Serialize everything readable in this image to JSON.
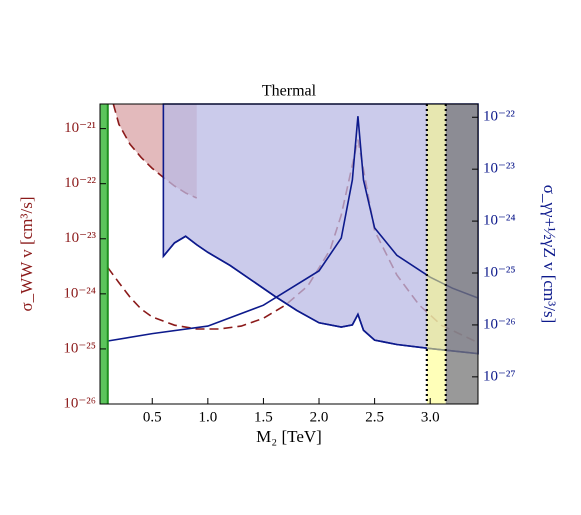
{
  "chart_data": {
    "type": "line",
    "title": "Thermal",
    "xlabel": "M₂ [TeV]",
    "ylabel": "σ_WW v [cm³/s]",
    "y2label": "σ_γγ+½γZ v [cm³/s]",
    "ylabel_color": "#8b1a1a",
    "y2label_color": "#0d1a8c",
    "log_y": true,
    "xlim": [
      0.03,
      3.43
    ],
    "ylim": [
      1e-26,
      2.8e-21
    ],
    "y2lim": [
      3e-28,
      1.8e-22
    ],
    "xticks": [
      0.5,
      {
        "value": 1,
        "label": "1.0"
      },
      1.5,
      {
        "value": 2,
        "label": "2.0"
      },
      2.5,
      {
        "value": 3,
        "label": "3.0"
      }
    ],
    "yticks": [
      {
        "value": 1e-26,
        "label": "10⁻²⁶"
      },
      {
        "value": 1e-25,
        "label": "10⁻²⁵"
      },
      {
        "value": 1e-24,
        "label": "10⁻²⁴"
      },
      {
        "value": 1e-23,
        "label": "10⁻²³"
      },
      {
        "value": 1e-22,
        "label": "10⁻²²"
      },
      {
        "value": 1e-21,
        "label": "10⁻²¹"
      }
    ],
    "y2ticks": [
      {
        "value": 1e-27,
        "label": "10⁻²⁷"
      },
      {
        "value": 1e-26,
        "label": "10⁻²⁶"
      },
      {
        "value": 1e-25,
        "label": "10⁻²⁵"
      },
      {
        "value": 1e-24,
        "label": "10⁻²⁴"
      },
      {
        "value": 1e-23,
        "label": "10⁻²³"
      },
      {
        "value": 1e-22,
        "label": "10⁻²²"
      }
    ],
    "series": [
      {
        "color": "#8b1a1a",
        "style": "dashed",
        "axis": "y",
        "fill": "#d9a3a6",
        "x": [
          0.15,
          0.2,
          0.3,
          0.4,
          0.5,
          0.6,
          0.7,
          0.8,
          0.9
        ],
        "values": [
          2.8e-21,
          1.2e-21,
          5.2e-22,
          3e-22,
          1.9e-22,
          1.3e-22,
          9.1e-23,
          6.8e-23,
          5.5e-23
        ]
      },
      {
        "color": "#8b1a1a",
        "style": "dashed",
        "axis": "y",
        "x": [
          0.1,
          0.2,
          0.3,
          0.4,
          0.5,
          0.7,
          0.9,
          1.1,
          1.3,
          1.5,
          1.7,
          1.9,
          2.1,
          2.2,
          2.3,
          2.35,
          2.4,
          2.5,
          2.7,
          2.9,
          3.1,
          3.43
        ],
        "values": [
          3e-24,
          1.6e-24,
          8.7e-25,
          5.3e-25,
          3.8e-25,
          2.7e-25,
          2.3e-25,
          2.3e-25,
          2.6e-25,
          3.6e-25,
          6.3e-25,
          1.4e-24,
          6.3e-24,
          2.7e-23,
          2.2e-22,
          6.3e-22,
          1.8e-22,
          1.4e-23,
          2.2e-24,
          6.3e-25,
          2.7e-25,
          1.3e-25
        ]
      },
      {
        "color": "#0d1a8c",
        "style": "solid",
        "axis": "y2",
        "fill": "#b9b9e4",
        "x": [
          0.6,
          0.7,
          0.8,
          0.9,
          1.0,
          1.2,
          1.4,
          1.6,
          1.8,
          2.0,
          2.2,
          2.3,
          2.35,
          2.4,
          2.5,
          2.7,
          3.0,
          3.43
        ],
        "values": [
          2.1e-25,
          3.8e-25,
          5.1e-25,
          3.5e-25,
          2.5e-25,
          1.4e-25,
          7.1e-26,
          3.6e-26,
          1.9e-26,
          1.1e-26,
          9.1e-27,
          1e-26,
          1.6e-26,
          7.9e-27,
          5.1e-27,
          4.2e-27,
          3.5e-27,
          2.8e-27
        ]
      },
      {
        "color": "#0d1a8c",
        "style": "solid",
        "axis": "y2",
        "x": [
          0.1,
          0.5,
          1.0,
          1.5,
          2.0,
          2.2,
          2.3,
          2.35,
          2.4,
          2.5,
          2.7,
          3.0,
          3.2,
          3.43
        ],
        "values": [
          4.9e-27,
          6.8e-27,
          9.5e-27,
          2.4e-26,
          1.1e-25,
          4.7e-25,
          6.2e-24,
          1.05e-22,
          6.2e-24,
          7.4e-25,
          2.2e-25,
          8.3e-26,
          5.1e-26,
          3.3e-26
        ]
      }
    ],
    "bands": [
      {
        "x0": 0.03,
        "x1": 0.1,
        "color": "#5cc45c",
        "opacity": 1
      },
      {
        "x0": 2.97,
        "x1": 3.14,
        "color": "#ffff80",
        "opacity": 0.55
      },
      {
        "x0": 3.14,
        "x1": 3.43,
        "color": "#777777",
        "opacity": 0.75
      }
    ],
    "vlines": [
      {
        "x": 0.1,
        "color": "#1f8f1f",
        "style": "solid"
      },
      {
        "x": 2.97,
        "color": "#000000",
        "style": "dotted"
      },
      {
        "x": 3.14,
        "color": "#000000",
        "style": "dotted"
      }
    ]
  }
}
